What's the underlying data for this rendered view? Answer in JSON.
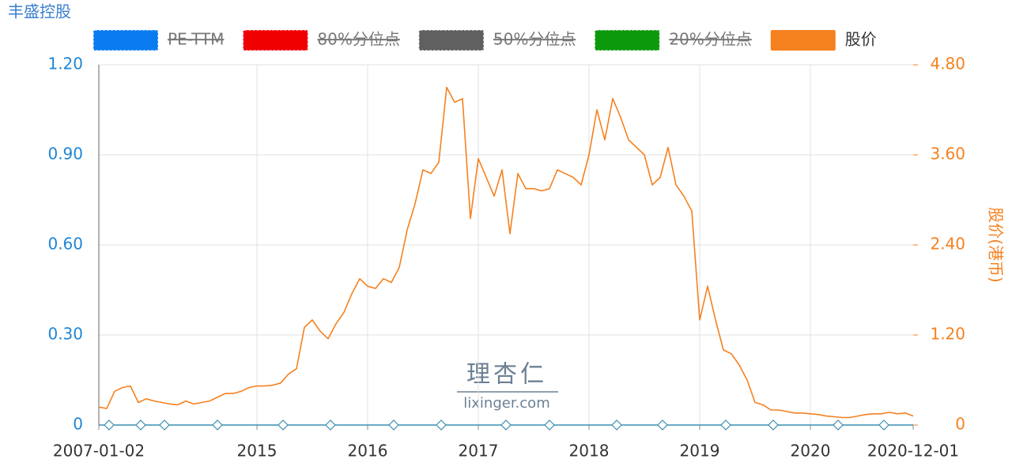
{
  "chart_data": {
    "type": "line",
    "title": "丰盛控股",
    "y2_label": "股价(港币)",
    "watermark": [
      "理杏仁",
      "lixinger.com"
    ],
    "categories": [
      "2007-01-02",
      null,
      null,
      null,
      null,
      null,
      null,
      null,
      null,
      null,
      null,
      null,
      null,
      null,
      null,
      null,
      null,
      null,
      null,
      null,
      "2015",
      null,
      null,
      null,
      null,
      null,
      null,
      null,
      null,
      null,
      null,
      null,
      null,
      null,
      "2016",
      null,
      null,
      null,
      null,
      null,
      null,
      null,
      null,
      null,
      null,
      null,
      null,
      null,
      "2017",
      null,
      null,
      null,
      null,
      null,
      null,
      null,
      null,
      null,
      null,
      null,
      null,
      null,
      "2018",
      null,
      null,
      null,
      null,
      null,
      null,
      null,
      null,
      null,
      null,
      null,
      null,
      null,
      "2019",
      null,
      null,
      null,
      null,
      null,
      null,
      null,
      null,
      null,
      null,
      null,
      null,
      null,
      "2020",
      null,
      null,
      null,
      null,
      null,
      null,
      null,
      null,
      null,
      null,
      null,
      null,
      "2020-12-01"
    ],
    "series": [
      {
        "name": "PE-TTM",
        "color": "#0a7cf0",
        "hidden": true
      },
      {
        "name": "80%分位点",
        "color": "#f00000",
        "hidden": true
      },
      {
        "name": "50%分位点",
        "color": "#606060",
        "hidden": true
      },
      {
        "name": "20%分位点",
        "color": "#0c9a0c",
        "hidden": true
      },
      {
        "name": "股价",
        "color": "#f5811f",
        "axis": "y2",
        "values": [
          0.24,
          0.22,
          0.45,
          0.5,
          0.52,
          0.3,
          0.35,
          0.32,
          0.3,
          0.28,
          0.27,
          0.32,
          0.28,
          0.3,
          0.32,
          0.37,
          0.42,
          0.42,
          0.45,
          0.5,
          0.52,
          0.52,
          0.53,
          0.56,
          0.68,
          0.75,
          1.3,
          1.4,
          1.25,
          1.15,
          1.35,
          1.5,
          1.75,
          1.95,
          1.85,
          1.82,
          1.95,
          1.9,
          2.1,
          2.6,
          2.95,
          3.4,
          3.35,
          3.5,
          4.5,
          4.3,
          4.35,
          2.75,
          3.55,
          3.3,
          3.05,
          3.4,
          2.55,
          3.35,
          3.15,
          3.15,
          3.12,
          3.15,
          3.4,
          3.35,
          3.3,
          3.2,
          3.6,
          4.2,
          3.8,
          4.35,
          4.1,
          3.8,
          3.7,
          3.6,
          3.2,
          3.3,
          3.7,
          3.2,
          3.05,
          2.85,
          1.4,
          1.85,
          1.4,
          1.0,
          0.95,
          0.8,
          0.6,
          0.3,
          0.27,
          0.2,
          0.2,
          0.18,
          0.16,
          0.16,
          0.15,
          0.14,
          0.12,
          0.11,
          0.1,
          0.1,
          0.12,
          0.14,
          0.15,
          0.15,
          0.17,
          0.15,
          0.16,
          0.12
        ]
      }
    ],
    "ylim": [
      0,
      1.2
    ],
    "yticks": [
      0,
      {
        "value": 0.3,
        "label": "0.30"
      },
      {
        "value": 0.6,
        "label": "0.60"
      },
      {
        "value": 0.9,
        "label": "0.90"
      },
      {
        "value": 1.2,
        "label": "1.20"
      }
    ],
    "y2lim": [
      0,
      4.8
    ],
    "y2ticks": [
      0,
      {
        "value": 1.2,
        "label": "1.20"
      },
      {
        "value": 2.4,
        "label": "2.40"
      },
      {
        "value": 3.6,
        "label": "3.60"
      },
      {
        "value": 4.8,
        "label": "4.80"
      }
    ],
    "grid": true
  }
}
